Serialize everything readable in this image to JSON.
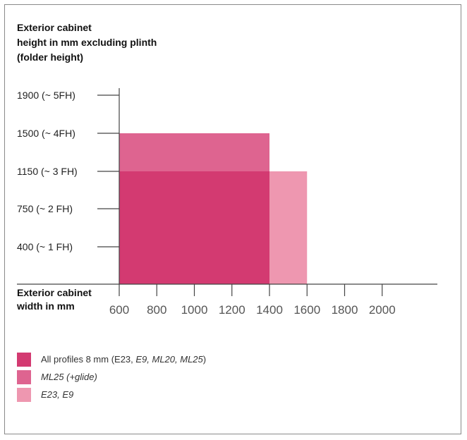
{
  "chart_data": {
    "type": "bar",
    "ylabel_lines": [
      "Exterior cabinet",
      "height in mm excluding plinth",
      "(folder height)"
    ],
    "xlabel_lines": [
      "Exterior cabinet",
      "width in mm"
    ],
    "y_ticks": [
      {
        "value": 400,
        "label": "400 (~ 1 FH)"
      },
      {
        "value": 750,
        "label": "750 (~ 2 FH)"
      },
      {
        "value": 1150,
        "label": "1150 (~ 3 FH)"
      },
      {
        "value": 1500,
        "label": "1500 (~ 4FH)"
      },
      {
        "value": 1900,
        "label": "1900 (~  5FH)"
      }
    ],
    "x_ticks": [
      600,
      800,
      1000,
      1200,
      1400,
      1600,
      1800,
      2000
    ],
    "xlim": [
      600,
      2000
    ],
    "ylim": [
      0,
      1900
    ],
    "series": [
      {
        "name": "ML25 (+glide)",
        "color": "#de6490",
        "x_from": 600,
        "x_to": 1400,
        "y_from": 1150,
        "y_to": 1500
      },
      {
        "name": "E23, E9",
        "color": "#ee97b0",
        "x_from": 1400,
        "x_to": 1600,
        "y_from": 0,
        "y_to": 1150
      },
      {
        "name": "All profiles 8 mm (E23, E9, ML20, ML25)",
        "color": "#d33a71",
        "x_from": 600,
        "x_to": 1400,
        "y_from": 0,
        "y_to": 1150
      }
    ],
    "legend": {
      "placement": "bottom-left",
      "items": [
        {
          "color": "#d33a71",
          "parts": [
            {
              "text": "All profiles 8 mm (E23, ",
              "italic": false
            },
            {
              "text": "E9, ML20, ML25",
              "italic": true
            },
            {
              "text": ")",
              "italic": false
            }
          ]
        },
        {
          "color": "#de6490",
          "parts": [
            {
              "text": "ML25 (+glide)",
              "italic": true
            }
          ]
        },
        {
          "color": "#ee97b0",
          "parts": [
            {
              "text": "E23, E9",
              "italic": true
            }
          ]
        }
      ]
    }
  }
}
